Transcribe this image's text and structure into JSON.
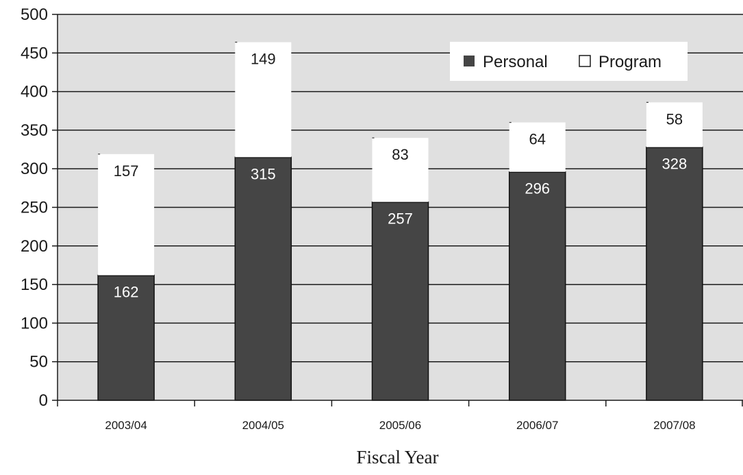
{
  "chart_data": {
    "type": "bar",
    "stacked": true,
    "categories": [
      "2003/04",
      "2004/05",
      "2005/06",
      "2006/07",
      "2007/08"
    ],
    "series": [
      {
        "name": "Personal",
        "values": [
          162,
          315,
          257,
          296,
          328
        ],
        "color": "#454545"
      },
      {
        "name": "Program",
        "values": [
          157,
          149,
          83,
          64,
          58
        ],
        "color": "#ffffff"
      }
    ],
    "title": "",
    "xlabel": "Fiscal Year",
    "ylabel": "",
    "ylim": [
      0,
      500
    ],
    "yticks": [
      "0",
      "50",
      "100",
      "150",
      "200",
      "250",
      "300",
      "350",
      "400",
      "450",
      "500"
    ],
    "grid": true,
    "legend": "top-right",
    "plot_background": "#e0e0e0"
  }
}
